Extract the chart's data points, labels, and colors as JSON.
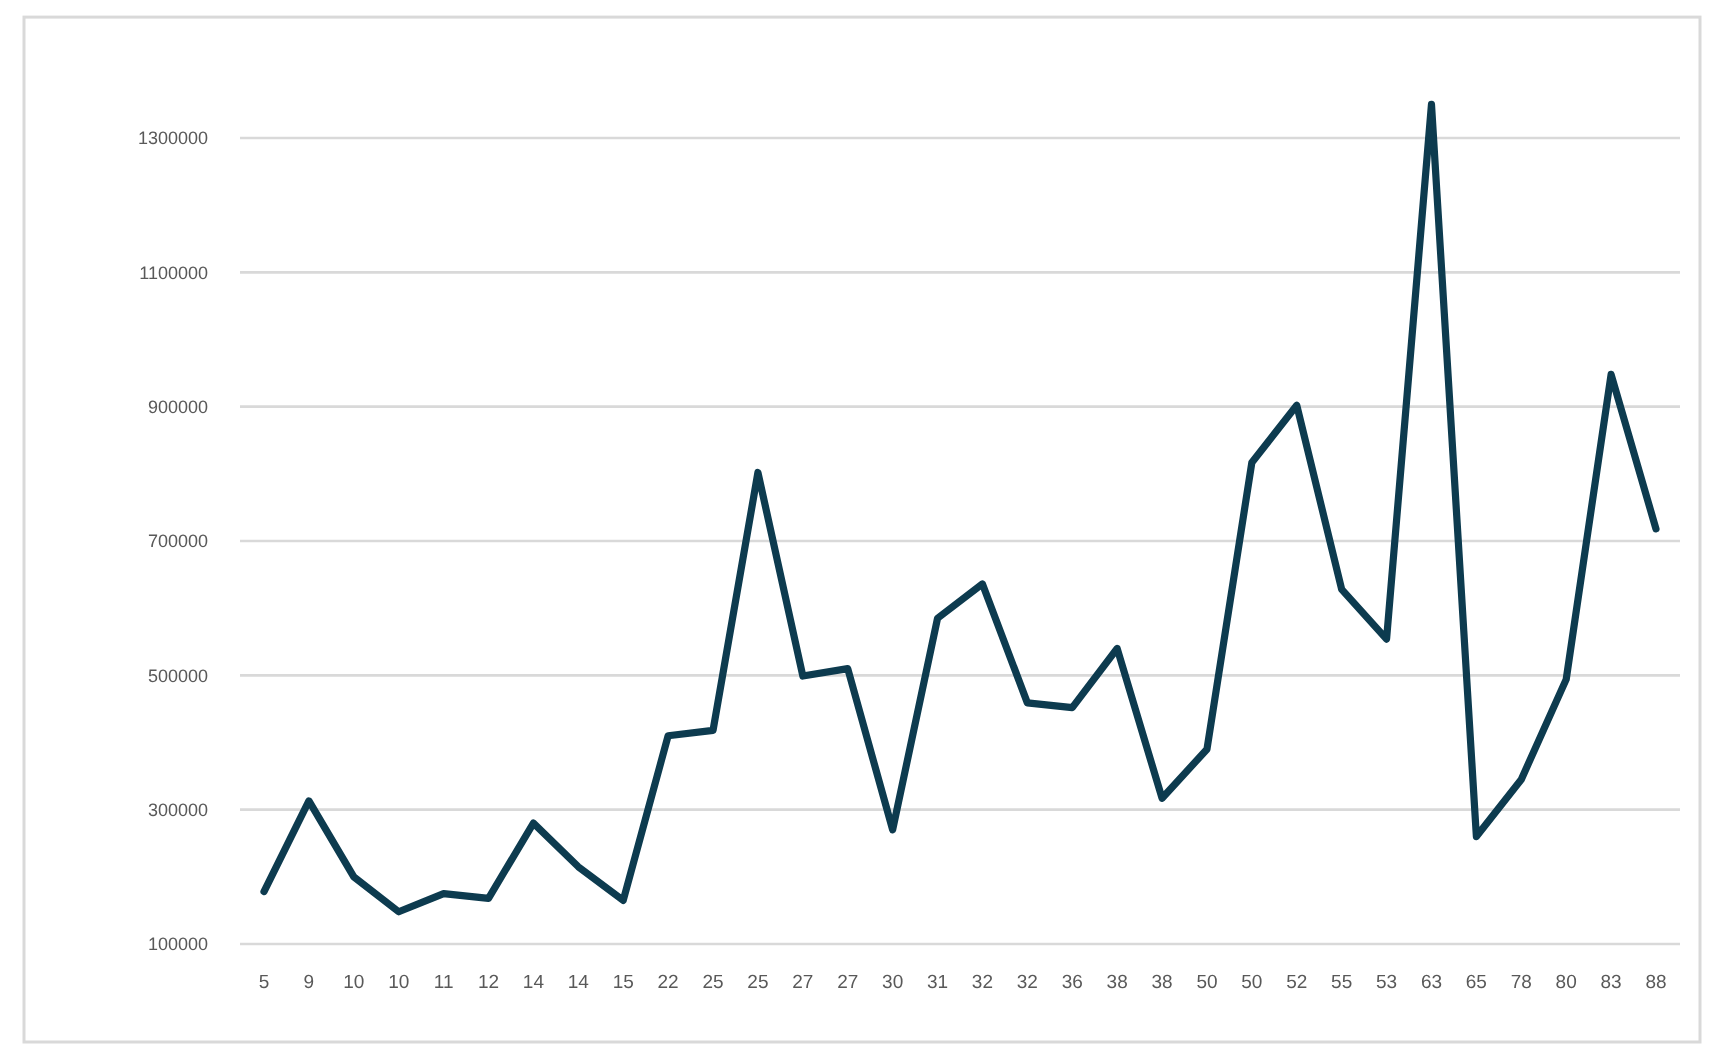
{
  "chart_data": {
    "type": "line",
    "categories": [
      "5",
      "9",
      "10",
      "10",
      "11",
      "12",
      "14",
      "14",
      "15",
      "22",
      "25",
      "25",
      "27",
      "27",
      "30",
      "31",
      "32",
      "32",
      "36",
      "38",
      "38",
      "50",
      "50",
      "52",
      "55",
      "53",
      "63",
      "65",
      "78",
      "80",
      "83",
      "88"
    ],
    "series": [
      {
        "color": "#0d3b4f",
        "values": [
          178000,
          313000,
          200000,
          148000,
          175000,
          168000,
          280000,
          215000,
          165000,
          410000,
          418000,
          802000,
          499000,
          510000,
          270000,
          585000,
          636000,
          459000,
          452000,
          540000,
          317000,
          390000,
          817000,
          902000,
          628000,
          554000,
          1350000,
          260000,
          345000,
          494000,
          948000,
          718000
        ]
      }
    ],
    "ylim": [
      100000,
      1480000
    ],
    "yticks": [
      100000,
      300000,
      500000,
      700000,
      900000,
      1100000,
      1300000
    ],
    "grid": "y"
  }
}
